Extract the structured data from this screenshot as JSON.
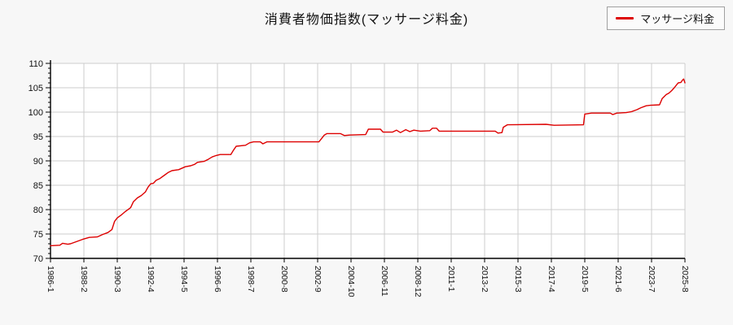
{
  "title": "消費者物価指数(マッサージ料金)",
  "legend": {
    "label": "マッサージ料金",
    "line_color": "#dd0000"
  },
  "chart_data": {
    "type": "line",
    "series_name": "マッサージ料金",
    "title": "消費者物価指数(マッサージ料金)",
    "xlabel": "",
    "ylabel": "",
    "x_range": [
      "1986-1",
      "2025-8"
    ],
    "ylim": [
      70,
      110
    ],
    "y_ticks": [
      70,
      75,
      80,
      85,
      90,
      95,
      100,
      105,
      110
    ],
    "x_ticks": [
      "1986-1",
      "1988-2",
      "1990-3",
      "1992-4",
      "1994-5",
      "1996-6",
      "1998-7",
      "2000-8",
      "2002-9",
      "2004-10",
      "2006-11",
      "2008-12",
      "2011-1",
      "2013-2",
      "2015-3",
      "2017-4",
      "2019-5",
      "2021-6",
      "2023-7",
      "2025-8"
    ],
    "grid": true,
    "legend_position": "top-right",
    "colors": {
      "line": "#dd0000",
      "grid": "#cccccc",
      "axis": "#000000",
      "plot_bg": "#ffffff",
      "page_bg": "#f7f7f7",
      "text": "#111111"
    },
    "points": [
      [
        "1986-1",
        72.6
      ],
      [
        "1986-8",
        72.7
      ],
      [
        "1986-10",
        73.1
      ],
      [
        "1987-2",
        72.9
      ],
      [
        "1987-4",
        73.0
      ],
      [
        "1987-8",
        73.4
      ],
      [
        "1988-1",
        73.9
      ],
      [
        "1988-6",
        74.3
      ],
      [
        "1988-12",
        74.4
      ],
      [
        "1989-4",
        74.9
      ],
      [
        "1989-8",
        75.3
      ],
      [
        "1989-11",
        75.9
      ],
      [
        "1990-1",
        77.6
      ],
      [
        "1990-3",
        78.3
      ],
      [
        "1990-6",
        78.9
      ],
      [
        "1990-9",
        79.6
      ],
      [
        "1991-1",
        80.4
      ],
      [
        "1991-3",
        81.6
      ],
      [
        "1991-6",
        82.4
      ],
      [
        "1991-9",
        82.9
      ],
      [
        "1991-12",
        83.6
      ],
      [
        "1992-2",
        84.6
      ],
      [
        "1992-4",
        85.3
      ],
      [
        "1992-6",
        85.4
      ],
      [
        "1992-8",
        86.0
      ],
      [
        "1992-11",
        86.4
      ],
      [
        "1993-2",
        87.0
      ],
      [
        "1993-5",
        87.6
      ],
      [
        "1993-8",
        88.0
      ],
      [
        "1994-1",
        88.2
      ],
      [
        "1994-6",
        88.8
      ],
      [
        "1994-10",
        89.0
      ],
      [
        "1995-1",
        89.3
      ],
      [
        "1995-3",
        89.7
      ],
      [
        "1995-8",
        89.9
      ],
      [
        "1995-11",
        90.3
      ],
      [
        "1996-2",
        90.8
      ],
      [
        "1996-5",
        91.1
      ],
      [
        "1996-8",
        91.3
      ],
      [
        "1997-4",
        91.3
      ],
      [
        "1997-6",
        92.2
      ],
      [
        "1997-8",
        93.0
      ],
      [
        "1998-3",
        93.2
      ],
      [
        "1998-6",
        93.7
      ],
      [
        "1998-9",
        93.9
      ],
      [
        "1999-2",
        93.9
      ],
      [
        "1999-4",
        93.5
      ],
      [
        "1999-7",
        93.9
      ],
      [
        "2002-10",
        93.9
      ],
      [
        "2002-12",
        94.6
      ],
      [
        "2003-2",
        95.3
      ],
      [
        "2003-4",
        95.6
      ],
      [
        "2004-2",
        95.6
      ],
      [
        "2004-5",
        95.2
      ],
      [
        "2004-9",
        95.3
      ],
      [
        "2005-9",
        95.4
      ],
      [
        "2005-11",
        96.5
      ],
      [
        "2006-8",
        96.5
      ],
      [
        "2006-10",
        95.9
      ],
      [
        "2007-5",
        95.9
      ],
      [
        "2007-8",
        96.3
      ],
      [
        "2007-11",
        95.8
      ],
      [
        "2008-3",
        96.4
      ],
      [
        "2008-6",
        96.0
      ],
      [
        "2008-9",
        96.3
      ],
      [
        "2009-2",
        96.1
      ],
      [
        "2009-9",
        96.2
      ],
      [
        "2009-11",
        96.7
      ],
      [
        "2010-2",
        96.7
      ],
      [
        "2010-4",
        96.1
      ],
      [
        "2013-10",
        96.1
      ],
      [
        "2013-12",
        95.7
      ],
      [
        "2014-3",
        95.8
      ],
      [
        "2014-4",
        96.9
      ],
      [
        "2014-7",
        97.4
      ],
      [
        "2016-12",
        97.5
      ],
      [
        "2017-6",
        97.3
      ],
      [
        "2019-4",
        97.4
      ],
      [
        "2019-5",
        99.6
      ],
      [
        "2019-10",
        99.8
      ],
      [
        "2020-12",
        99.8
      ],
      [
        "2021-2",
        99.5
      ],
      [
        "2021-5",
        99.8
      ],
      [
        "2021-12",
        99.9
      ],
      [
        "2022-4",
        100.1
      ],
      [
        "2022-8",
        100.5
      ],
      [
        "2022-11",
        100.9
      ],
      [
        "2023-3",
        101.3
      ],
      [
        "2023-6",
        101.4
      ],
      [
        "2024-1",
        101.5
      ],
      [
        "2024-3",
        102.8
      ],
      [
        "2024-6",
        103.6
      ],
      [
        "2024-8",
        103.9
      ],
      [
        "2024-10",
        104.4
      ],
      [
        "2024-12",
        105.0
      ],
      [
        "2025-2",
        105.7
      ],
      [
        "2025-3",
        106.0
      ],
      [
        "2025-5",
        106.1
      ],
      [
        "2025-6",
        106.5
      ],
      [
        "2025-7",
        106.8
      ],
      [
        "2025-8",
        106.0
      ]
    ]
  }
}
